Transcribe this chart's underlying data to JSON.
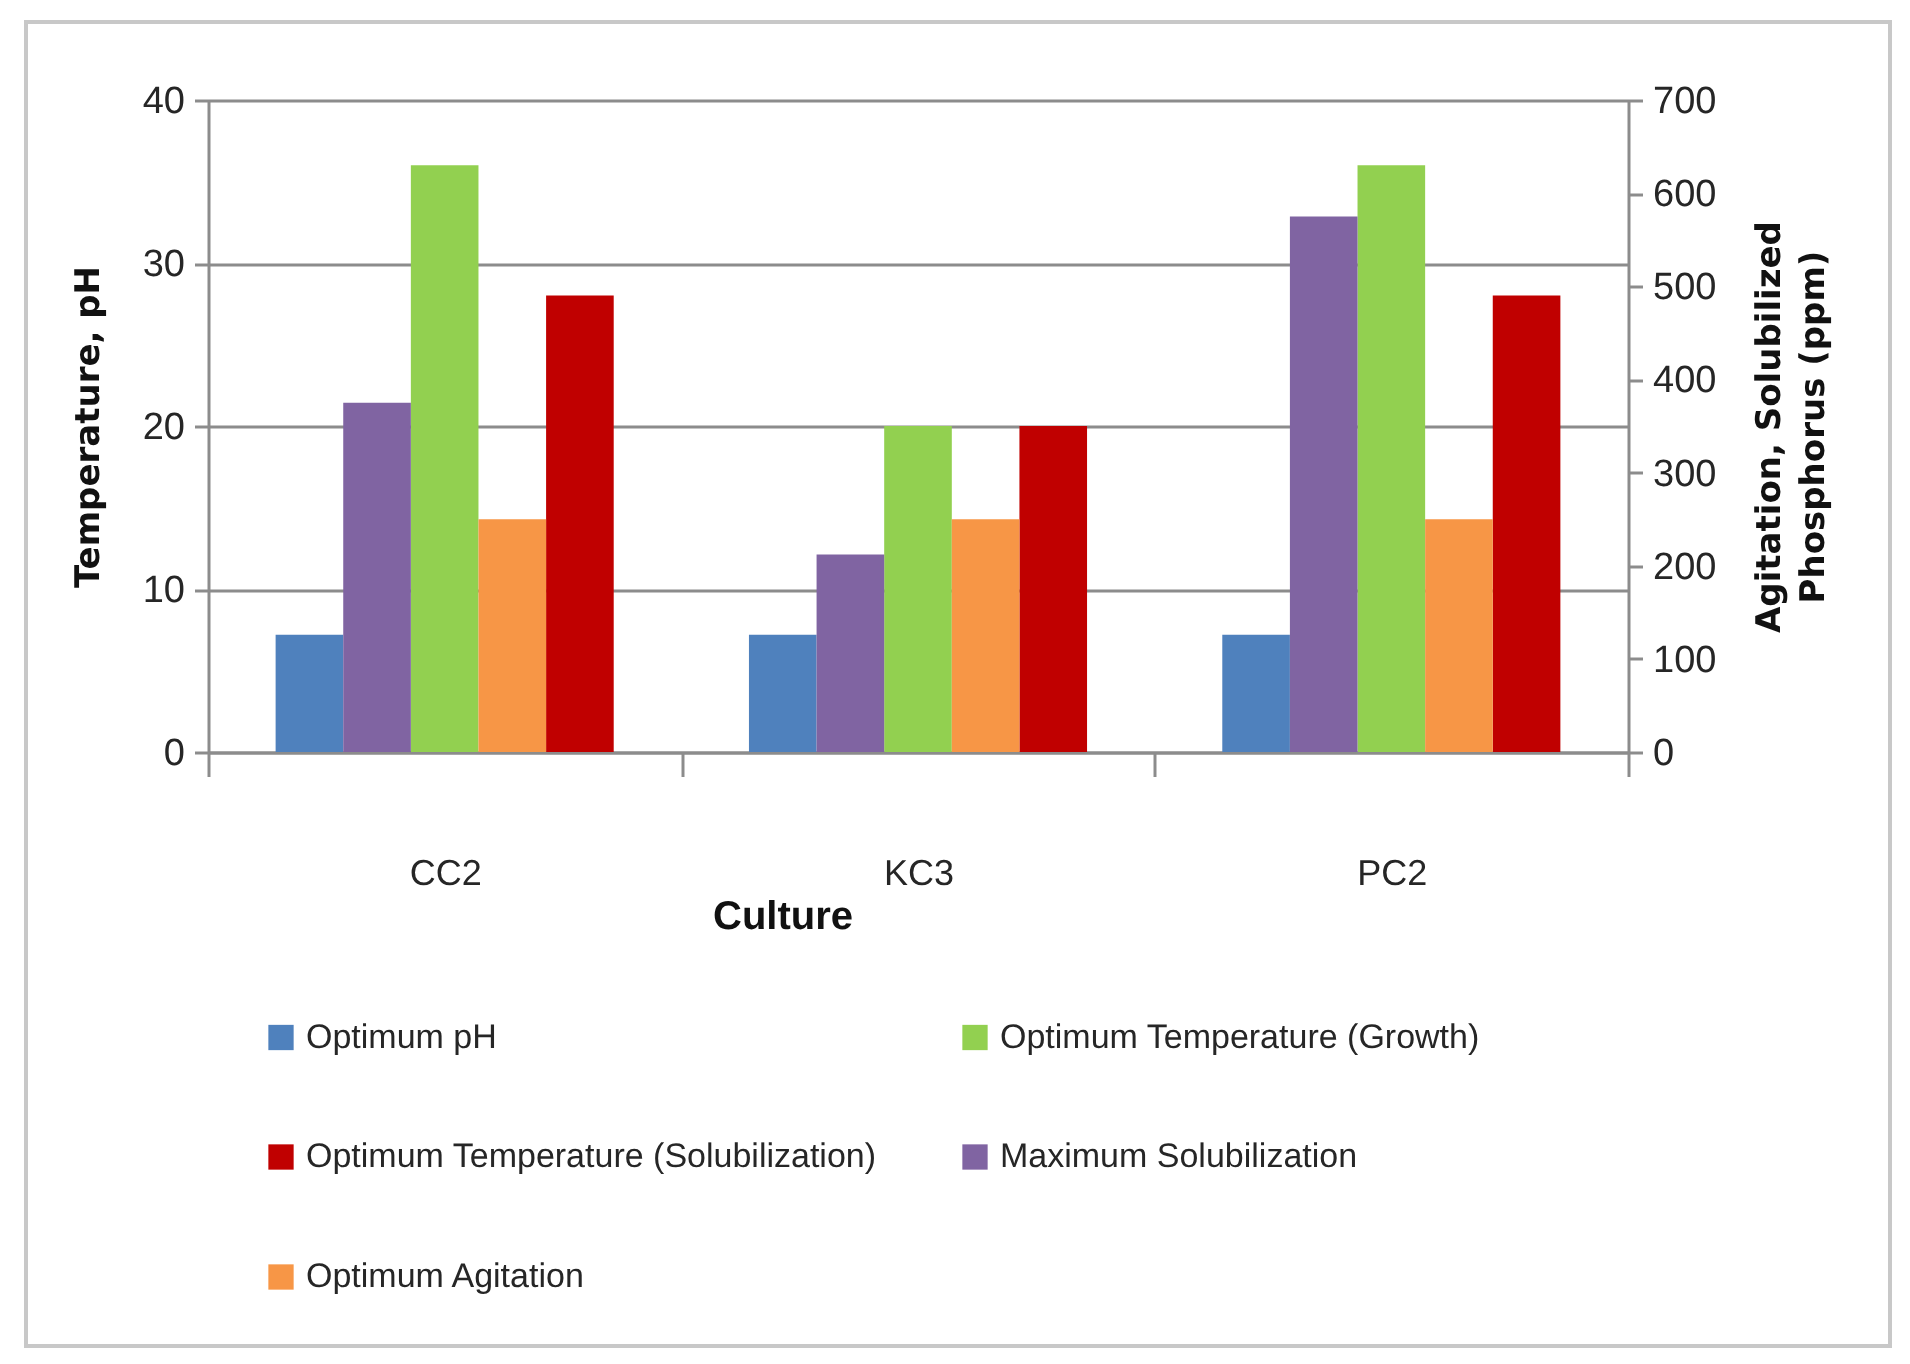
{
  "chart_data": {
    "type": "bar",
    "xlabel": "Culture",
    "ylabel": "Temperature, pH",
    "y2label": "Agitation, Solubilized Phosphorus (ppm)",
    "categories": [
      "CC2",
      "KC3",
      "PC2"
    ],
    "series": [
      {
        "name": "Optimum pH",
        "color": "#4f81bd",
        "values": [
          7.2,
          7.2,
          7.2
        ]
      },
      {
        "name": "Optimum Temperature (Growth)",
        "color": "#92d050",
        "values": [
          36,
          20,
          36
        ]
      },
      {
        "name": "Optimum Temperature (Solubilization)",
        "color": "#c00000",
        "values": [
          28,
          20,
          28
        ]
      },
      {
        "name": "Maximum Solubilization",
        "color": "#8064a2",
        "values": [
          375,
          212,
          575
        ],
        "axis": "y2"
      },
      {
        "name": "Optimum Agitation",
        "color": "#f79646",
        "values": [
          250,
          250,
          250
        ],
        "axis": "y2"
      }
    ],
    "ylim": [
      0,
      40
    ],
    "yticks": [
      0,
      10,
      20,
      30,
      40
    ],
    "y2lim": [
      0,
      700
    ],
    "y2ticks": [
      0,
      100,
      200,
      300,
      400,
      500,
      600,
      700
    ],
    "grid": "y",
    "legend": "bottom"
  }
}
